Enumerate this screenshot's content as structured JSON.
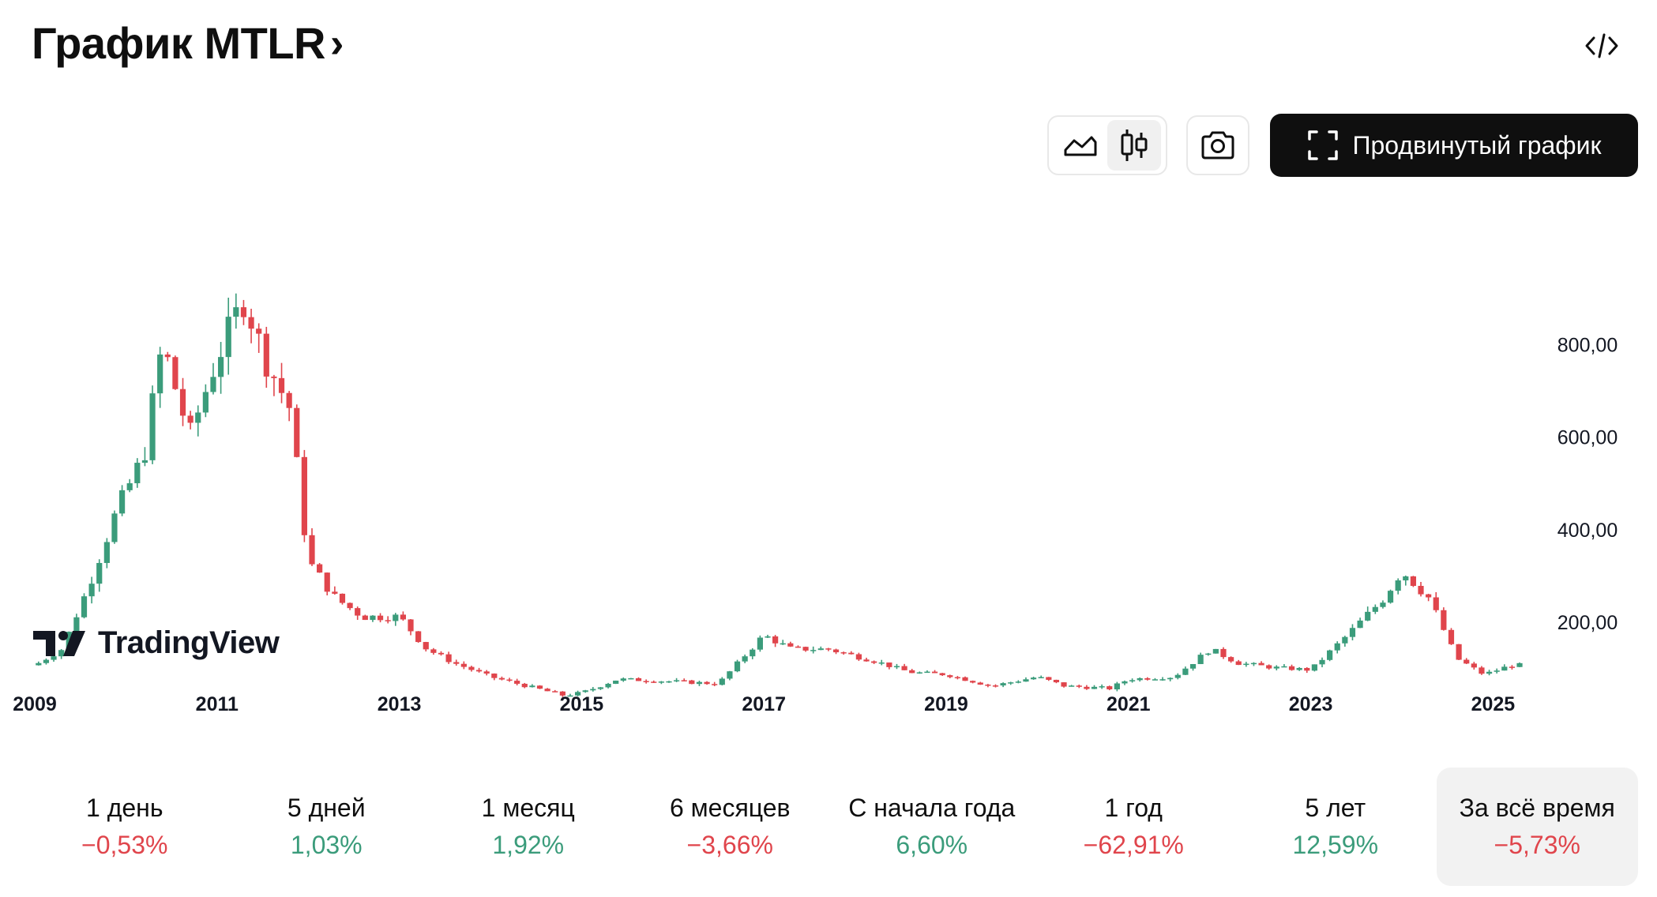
{
  "header": {
    "title": "График MTLR",
    "chevron": "›"
  },
  "icons": {
    "embed": "code-embed-icon",
    "line_chart": "area-chart-icon",
    "candles": "candlestick-icon",
    "screenshot": "camera-icon",
    "fullscreen": "fullscreen-icon"
  },
  "toolbar": {
    "advanced_label": "Продвинутый график"
  },
  "brand": {
    "name": "TradingView"
  },
  "colors": {
    "up": "#3b9c7b",
    "down": "#e0454c",
    "dark": "#0f0f0f"
  },
  "chart_data": {
    "type": "candlestick",
    "x_ticks": [
      "2009",
      "2011",
      "2013",
      "2015",
      "2017",
      "2019",
      "2021",
      "2023",
      "2025"
    ],
    "y_ticks": [
      "200,00",
      "400,00",
      "600,00",
      "800,00"
    ],
    "ylim": [
      0,
      960
    ],
    "xlim": [
      2009.0,
      2025.3
    ],
    "approx_close_path": [
      [
        2009.0,
        105
      ],
      [
        2009.3,
        140
      ],
      [
        2009.6,
        280
      ],
      [
        2009.9,
        440
      ],
      [
        2010.2,
        560
      ],
      [
        2010.4,
        800
      ],
      [
        2010.7,
        600
      ],
      [
        2011.0,
        770
      ],
      [
        2011.3,
        900
      ],
      [
        2011.5,
        780
      ],
      [
        2011.8,
        660
      ],
      [
        2012.0,
        330
      ],
      [
        2012.3,
        250
      ],
      [
        2012.6,
        210
      ],
      [
        2013.0,
        210
      ],
      [
        2013.3,
        140
      ],
      [
        2013.6,
        110
      ],
      [
        2014.0,
        80
      ],
      [
        2014.4,
        60
      ],
      [
        2014.8,
        40
      ],
      [
        2015.0,
        45
      ],
      [
        2015.4,
        75
      ],
      [
        2016.0,
        70
      ],
      [
        2016.5,
        65
      ],
      [
        2017.0,
        170
      ],
      [
        2017.3,
        140
      ],
      [
        2017.7,
        140
      ],
      [
        2018.2,
        115
      ],
      [
        2018.6,
        90
      ],
      [
        2019.0,
        85
      ],
      [
        2019.5,
        60
      ],
      [
        2020.0,
        80
      ],
      [
        2020.3,
        60
      ],
      [
        2020.8,
        55
      ],
      [
        2021.0,
        75
      ],
      [
        2021.5,
        80
      ],
      [
        2021.9,
        140
      ],
      [
        2022.2,
        110
      ],
      [
        2022.6,
        100
      ],
      [
        2023.0,
        95
      ],
      [
        2023.4,
        170
      ],
      [
        2023.8,
        250
      ],
      [
        2024.0,
        310
      ],
      [
        2024.3,
        250
      ],
      [
        2024.6,
        120
      ],
      [
        2024.9,
        85
      ],
      [
        2025.2,
        105
      ]
    ]
  },
  "periods": [
    {
      "label": "1 день",
      "value": "−0,53%",
      "trend": "neg"
    },
    {
      "label": "5 дней",
      "value": "1,03%",
      "trend": "pos"
    },
    {
      "label": "1 месяц",
      "value": "1,92%",
      "trend": "pos"
    },
    {
      "label": "6 месяцев",
      "value": "−3,66%",
      "trend": "neg"
    },
    {
      "label": "С начала года",
      "value": "6,60%",
      "trend": "pos"
    },
    {
      "label": "1 год",
      "value": "−62,91%",
      "trend": "neg"
    },
    {
      "label": "5 лет",
      "value": "12,59%",
      "trend": "pos"
    },
    {
      "label": "За всё время",
      "value": "−5,73%",
      "trend": "neg"
    }
  ],
  "active_period": 7
}
